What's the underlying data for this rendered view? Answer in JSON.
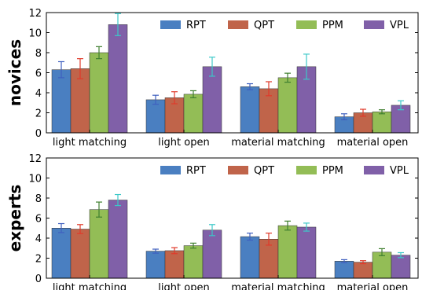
{
  "colors": {
    "RPT": "#4a7fc1",
    "QPT": "#c0644a",
    "PPM": "#93bd56",
    "VPL": "#8060a8",
    "err_RPT": "#3f5fbf",
    "err_QPT": "#e03a2a",
    "err_PPM": "#3f7f2f",
    "err_VPL": "#3cc8c8"
  },
  "chart_data": [
    {
      "type": "bar",
      "row_label": "novices",
      "categories": [
        "light matching",
        "light open",
        "material matching",
        "material open"
      ],
      "ylim": [
        0,
        12
      ],
      "yticks": [
        "0",
        "2",
        "4",
        "6",
        "8",
        "10",
        "12"
      ],
      "grid": false,
      "legend": "top-right",
      "series": [
        {
          "name": "RPT",
          "values": [
            6.3,
            3.3,
            4.6,
            1.6
          ],
          "errors": [
            0.8,
            0.45,
            0.3,
            0.3
          ]
        },
        {
          "name": "QPT",
          "values": [
            6.4,
            3.5,
            4.4,
            2.0
          ],
          "errors": [
            1.0,
            0.6,
            0.7,
            0.35
          ]
        },
        {
          "name": "PPM",
          "values": [
            8.0,
            3.85,
            5.5,
            2.1
          ],
          "errors": [
            0.6,
            0.35,
            0.45,
            0.2
          ]
        },
        {
          "name": "VPL",
          "values": [
            10.8,
            6.6,
            6.6,
            2.75
          ],
          "errors": [
            1.1,
            0.95,
            1.25,
            0.45
          ]
        }
      ]
    },
    {
      "type": "bar",
      "row_label": "experts",
      "categories": [
        "light matching",
        "light open",
        "material matching",
        "material open"
      ],
      "ylim": [
        0,
        12
      ],
      "yticks": [
        "0",
        "2",
        "4",
        "6",
        "8",
        "10",
        "12"
      ],
      "grid": false,
      "legend": "top-right",
      "series": [
        {
          "name": "RPT",
          "values": [
            5.0,
            2.7,
            4.15,
            1.7
          ],
          "errors": [
            0.45,
            0.2,
            0.35,
            0.15
          ]
        },
        {
          "name": "QPT",
          "values": [
            4.9,
            2.75,
            3.9,
            1.6
          ],
          "errors": [
            0.45,
            0.3,
            0.6,
            0.15
          ]
        },
        {
          "name": "PPM",
          "values": [
            6.85,
            3.25,
            5.25,
            2.6
          ],
          "errors": [
            0.75,
            0.25,
            0.45,
            0.35
          ]
        },
        {
          "name": "VPL",
          "values": [
            7.8,
            4.8,
            5.1,
            2.3
          ],
          "errors": [
            0.55,
            0.55,
            0.4,
            0.25
          ]
        }
      ]
    }
  ]
}
